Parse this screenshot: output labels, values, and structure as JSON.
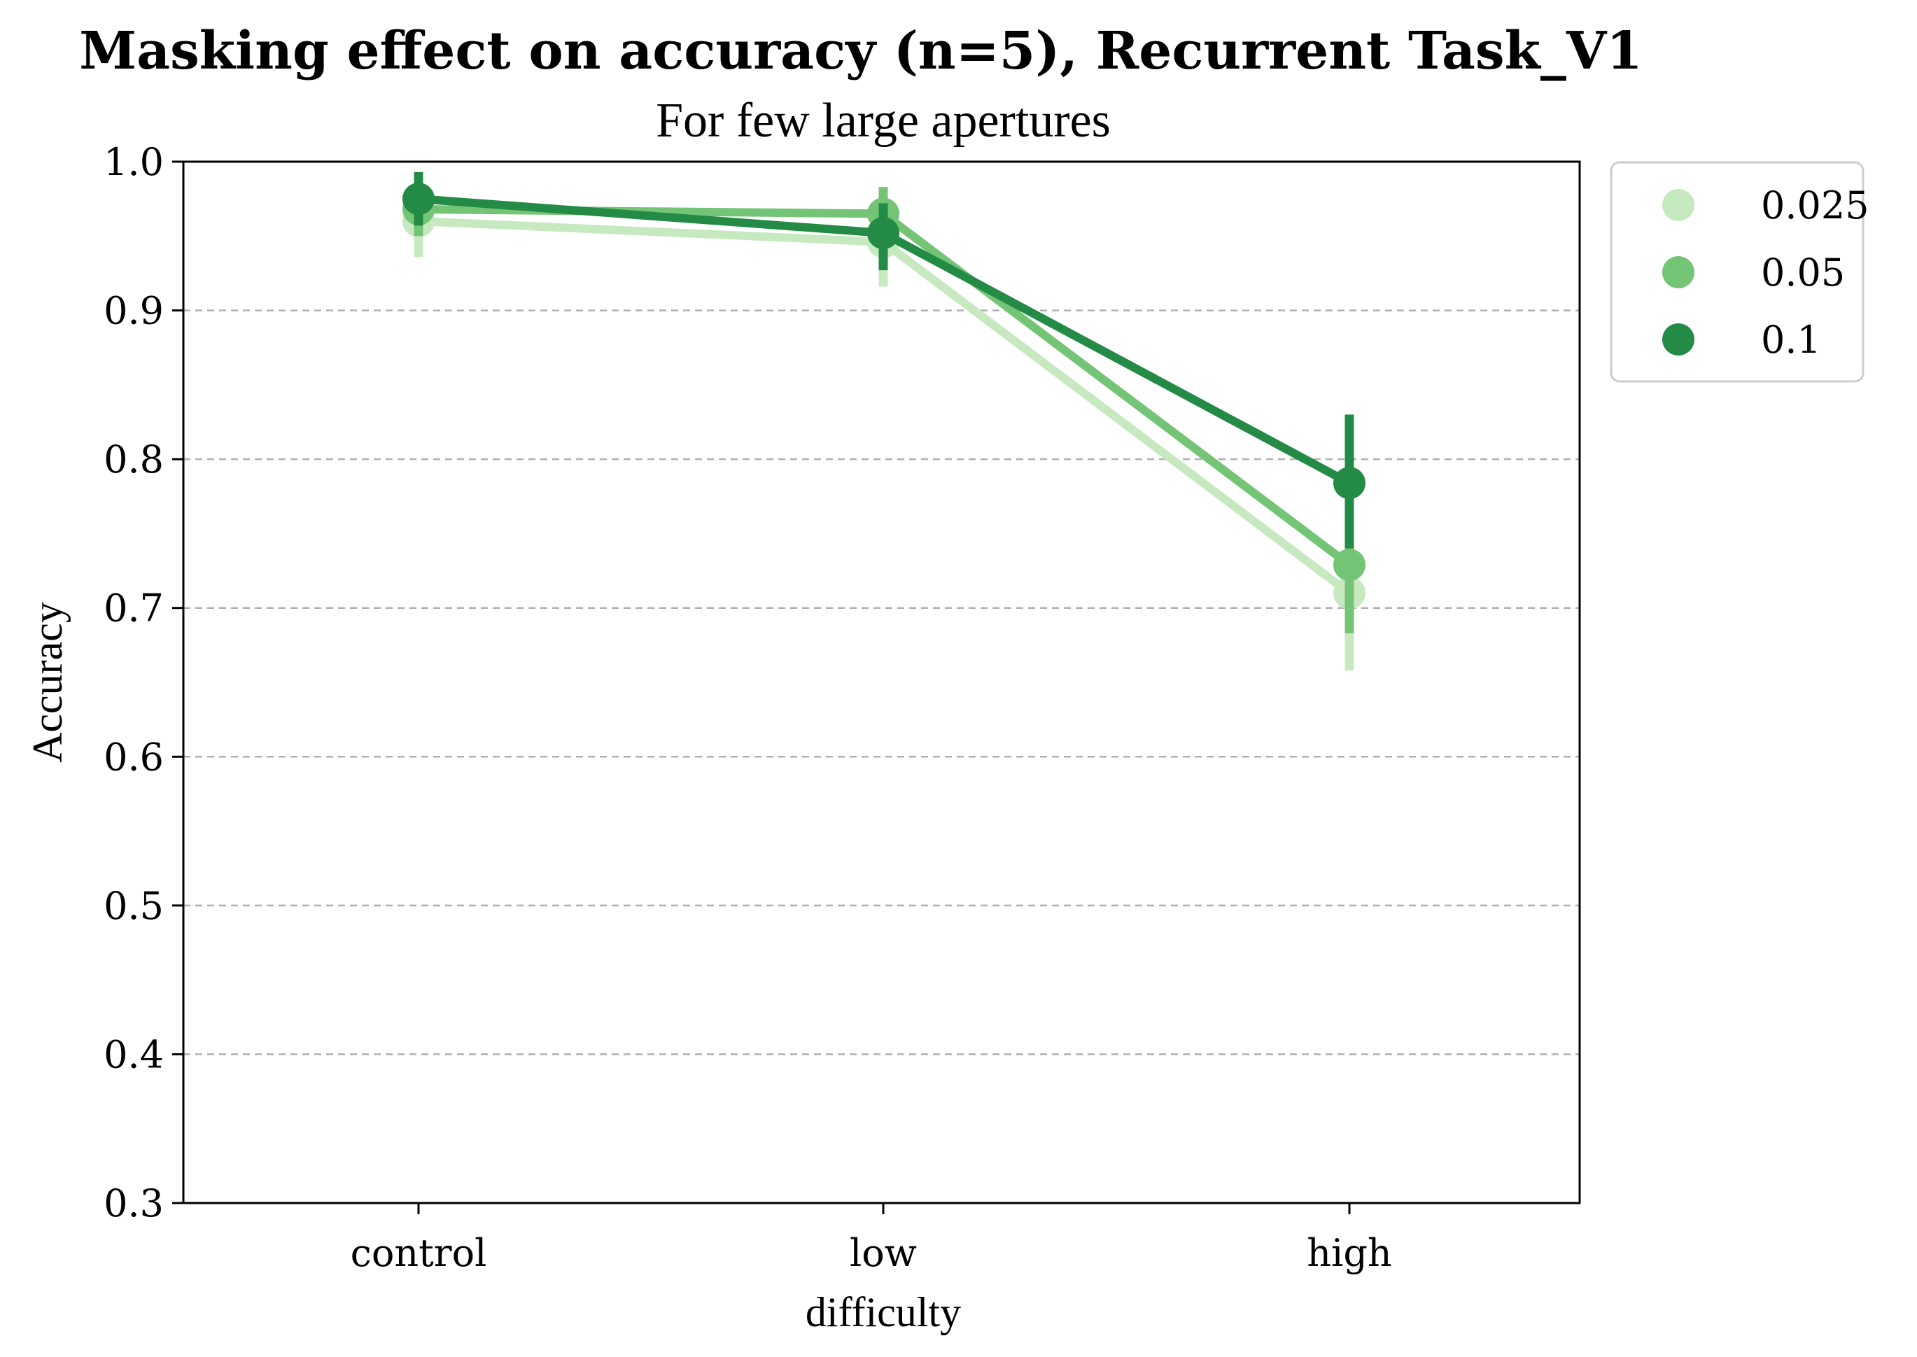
{
  "chart_data": {
    "type": "line",
    "title": "Masking effect on accuracy (n=5), Recurrent Task_V1",
    "subtitle": "For few large apertures",
    "xlabel": "difficulty",
    "ylabel": "Accuracy",
    "categories": [
      "control",
      "low",
      "high"
    ],
    "ylim": [
      0.3,
      1.0
    ],
    "yticks": [
      "0.3",
      "0.4",
      "0.5",
      "0.6",
      "0.7",
      "0.8",
      "0.9",
      "1.0"
    ],
    "grid": "horizontal dashed",
    "legend_position": "outside-top-right",
    "series": [
      {
        "name": "0.025",
        "color": "#c7e9c0",
        "values": [
          0.96,
          0.946,
          0.71
        ],
        "err_low": [
          0.936,
          0.916,
          0.658
        ],
        "err_high": [
          0.98,
          0.968,
          0.74
        ]
      },
      {
        "name": "0.05",
        "color": "#74c476",
        "values": [
          0.968,
          0.965,
          0.729
        ],
        "err_low": [
          0.95,
          0.942,
          0.683
        ],
        "err_high": [
          0.982,
          0.983,
          0.765
        ]
      },
      {
        "name": "0.1",
        "color": "#238b45",
        "values": [
          0.975,
          0.952,
          0.784
        ],
        "err_low": [
          0.957,
          0.927,
          0.74
        ],
        "err_high": [
          0.993,
          0.972,
          0.83
        ]
      }
    ]
  }
}
